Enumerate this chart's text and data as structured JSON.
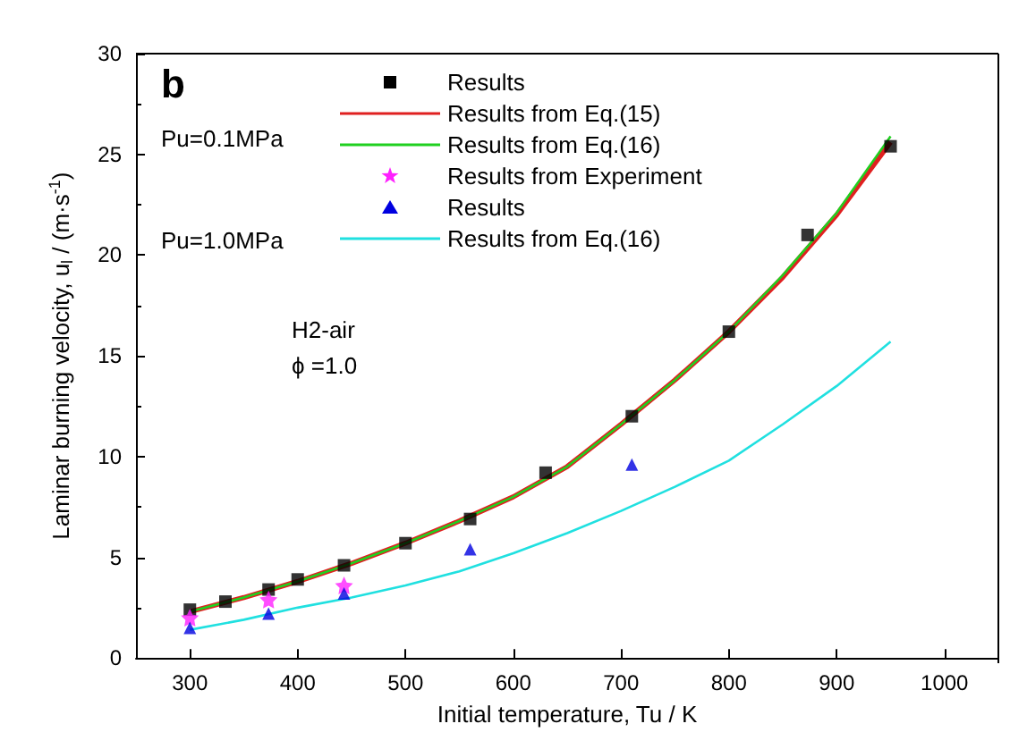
{
  "chart_data": {
    "type": "line",
    "xlabel": "Initial temperature, Tu / K",
    "ylabel": "Laminar burning velocity, u$_{l}$ / (m·s$^{-1}$)",
    "xlim": [
      250,
      1050
    ],
    "xticks": [
      300,
      400,
      500,
      600,
      700,
      800,
      900,
      1000
    ],
    "ylim": [
      0,
      30
    ],
    "yticks": [
      0,
      5,
      10,
      15,
      20,
      25,
      30
    ],
    "grid": false,
    "legend": "top",
    "annotations": [
      "b",
      "Pu=0.1MPa",
      "Pu=1.0MPa",
      "H2-air",
      "ϕ =1.0"
    ],
    "series": [
      {
        "name": "Results",
        "type": "scatter",
        "marker": "square",
        "color": "#000000",
        "x": [
          300,
          333,
          373,
          400,
          443,
          500,
          560,
          630,
          710,
          800,
          873,
          950
        ],
        "values": [
          2.4,
          2.8,
          3.4,
          3.9,
          4.6,
          5.7,
          6.9,
          9.2,
          12.0,
          16.2,
          21.0,
          25.4
        ]
      },
      {
        "name": "Results from Eq.(15)",
        "marker": "none",
        "color": "#e02020",
        "x": [
          300,
          350,
          400,
          450,
          500,
          550,
          600,
          650,
          700,
          750,
          800,
          850,
          900,
          950
        ],
        "values": [
          2.3,
          3.0,
          3.8,
          4.7,
          5.7,
          6.8,
          8.0,
          9.5,
          11.6,
          13.8,
          16.2,
          18.9,
          22.0,
          25.6
        ]
      },
      {
        "name": "Results from Eq.(16)",
        "marker": "none",
        "color": "#20d020",
        "x": [
          300,
          350,
          400,
          450,
          500,
          550,
          600,
          650,
          700,
          750,
          800,
          850,
          900,
          950
        ],
        "values": [
          2.3,
          3.0,
          3.8,
          4.7,
          5.7,
          6.8,
          8.0,
          9.5,
          11.6,
          13.8,
          16.2,
          19.0,
          22.1,
          25.9
        ]
      },
      {
        "name": "Results from Experiment",
        "type": "scatter",
        "marker": "star",
        "color": "#ff20ff",
        "x": [
          300,
          373,
          443
        ],
        "values": [
          2.0,
          2.9,
          3.6
        ]
      },
      {
        "name": "Results",
        "type": "scatter",
        "marker": "triangle",
        "color": "#0000e0",
        "x": [
          300,
          373,
          443,
          560,
          710
        ],
        "values": [
          1.5,
          2.2,
          3.2,
          5.4,
          9.6
        ]
      },
      {
        "name": "Results from Eq.(16)",
        "marker": "none",
        "color": "#20e0e0",
        "x": [
          300,
          350,
          400,
          450,
          500,
          550,
          600,
          650,
          700,
          750,
          800,
          850,
          900,
          950
        ],
        "values": [
          1.4,
          1.9,
          2.5,
          3.0,
          3.6,
          4.3,
          5.2,
          6.2,
          7.3,
          8.5,
          9.8,
          11.6,
          13.5,
          15.7
        ]
      }
    ]
  }
}
